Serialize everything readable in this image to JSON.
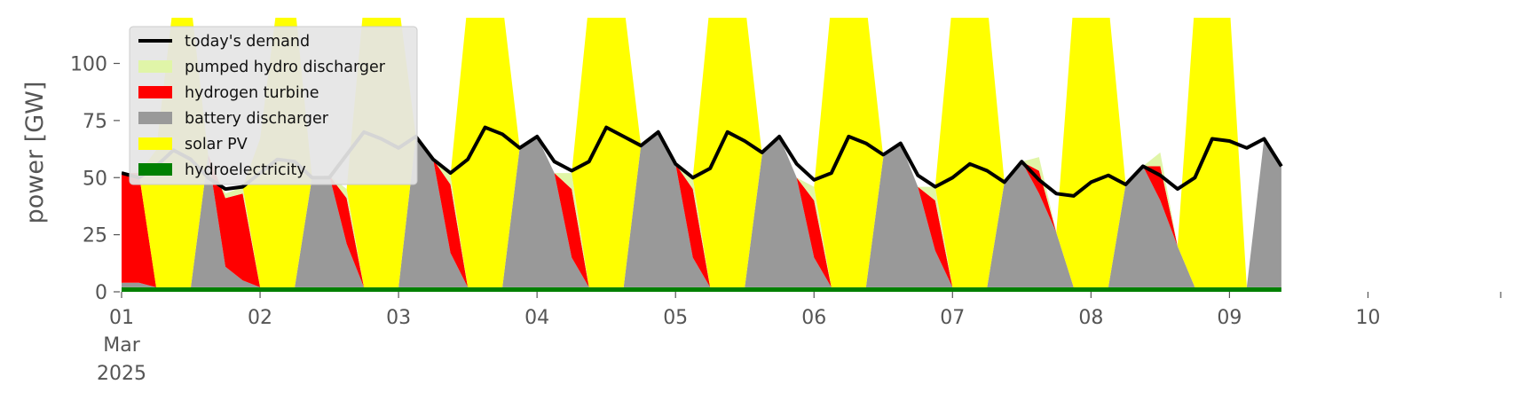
{
  "chart_data": {
    "type": "area",
    "title": "",
    "xlabel": "",
    "ylabel": "power [GW]",
    "ylim": [
      0,
      120
    ],
    "yticks": [
      "0",
      "25",
      "50",
      "75",
      "100"
    ],
    "xlim": [
      "2025-03-01",
      "2025-03-10T23:00"
    ],
    "xticks": [
      {
        "label": "01",
        "sub": [
          "Mar",
          "2025"
        ]
      },
      {
        "label": "02"
      },
      {
        "label": "03"
      },
      {
        "label": "04"
      },
      {
        "label": "05"
      },
      {
        "label": "06"
      },
      {
        "label": "07"
      },
      {
        "label": "08"
      },
      {
        "label": "09"
      },
      {
        "label": "10"
      }
    ],
    "grid": false,
    "legend_position": "top-left",
    "legend": [
      "today's demand",
      "pumped hydro discharger",
      "hydrogen turbine",
      "battery discharger",
      "solar PV",
      "hydroelectricity"
    ],
    "x_resolution": "3-hourly from 2025-03-01 00:00",
    "stack_order": [
      "hydroelectricity",
      "battery discharger",
      "hydrogen turbine",
      "pumped hydro discharger",
      "solar PV"
    ],
    "series": [
      {
        "name": "today's demand",
        "kind": "line",
        "color": "#000000",
        "values": [
          52,
          50,
          55,
          62,
          58,
          50,
          45,
          46,
          52,
          58,
          57,
          50,
          50,
          60,
          70,
          67,
          63,
          68,
          58,
          52,
          58,
          72,
          69,
          63,
          68,
          57,
          53,
          57,
          72,
          68,
          64,
          70,
          56,
          50,
          54,
          70,
          66,
          61,
          68,
          56,
          49,
          52,
          68,
          65,
          60,
          65,
          51,
          46,
          50,
          56,
          53,
          48,
          57,
          49,
          43,
          42,
          48,
          51,
          47,
          55,
          51,
          45,
          50,
          67,
          66,
          63,
          67,
          55
        ]
      },
      {
        "name": "pumped hydro discharger",
        "kind": "area",
        "color": "#e0f5a8",
        "values": [
          0,
          0,
          0,
          0,
          0,
          0,
          2,
          3,
          0,
          0,
          0,
          0,
          0,
          4,
          0,
          0,
          0,
          0,
          0,
          4,
          0,
          0,
          0,
          0,
          0,
          0,
          7,
          0,
          0,
          0,
          0,
          0,
          0,
          5,
          0,
          0,
          0,
          0,
          0,
          0,
          6,
          0,
          0,
          0,
          0,
          0,
          0,
          6,
          0,
          0,
          0,
          0,
          0,
          6,
          0,
          0,
          0,
          0,
          0,
          0,
          6,
          0,
          0,
          0,
          0,
          0,
          0,
          0
        ]
      },
      {
        "name": "hydrogen turbine",
        "kind": "area",
        "color": "#ff0000",
        "values": [
          48,
          48,
          0,
          0,
          0,
          0,
          30,
          38,
          0,
          0,
          0,
          0,
          0,
          20,
          0,
          0,
          0,
          0,
          0,
          30,
          0,
          0,
          0,
          0,
          0,
          0,
          30,
          0,
          0,
          0,
          0,
          0,
          0,
          30,
          0,
          0,
          0,
          0,
          0,
          0,
          25,
          0,
          0,
          0,
          0,
          0,
          0,
          22,
          0,
          0,
          0,
          0,
          0,
          10,
          0,
          0,
          0,
          0,
          0,
          0,
          15,
          0,
          0,
          0,
          0,
          0,
          0,
          0
        ]
      },
      {
        "name": "battery discharger",
        "kind": "area",
        "color": "#999999",
        "values": [
          2,
          2,
          0,
          0,
          0,
          58,
          9,
          3,
          0,
          0,
          0,
          48,
          49,
          19,
          0,
          0,
          0,
          66,
          56,
          15,
          0,
          0,
          0,
          61,
          66,
          50,
          13,
          0,
          0,
          0,
          62,
          68,
          54,
          13,
          0,
          0,
          0,
          58,
          66,
          48,
          13,
          0,
          0,
          0,
          57,
          63,
          44,
          16,
          0,
          0,
          0,
          46,
          55,
          41,
          24,
          0,
          0,
          0,
          45,
          53,
          38,
          18,
          0,
          0,
          0,
          0,
          65,
          53
        ]
      },
      {
        "name": "solar PV",
        "kind": "area",
        "color": "#ffff00",
        "values": [
          0,
          0,
          60,
          125,
          125,
          0,
          0,
          0,
          65,
          125,
          125,
          0,
          0,
          0,
          125,
          125,
          125,
          0,
          0,
          0,
          125,
          125,
          125,
          0,
          0,
          0,
          0,
          125,
          125,
          125,
          0,
          0,
          0,
          0,
          125,
          125,
          125,
          0,
          0,
          0,
          0,
          125,
          125,
          125,
          0,
          0,
          0,
          0,
          125,
          125,
          125,
          0,
          0,
          0,
          0,
          125,
          125,
          125,
          0,
          0,
          0,
          0,
          125,
          125,
          125,
          0,
          0,
          0
        ]
      },
      {
        "name": "hydroelectricity",
        "kind": "area",
        "color": "#008000",
        "values": [
          2,
          2,
          2,
          2,
          2,
          2,
          2,
          2,
          2,
          2,
          2,
          2,
          2,
          2,
          2,
          2,
          2,
          2,
          2,
          2,
          2,
          2,
          2,
          2,
          2,
          2,
          2,
          2,
          2,
          2,
          2,
          2,
          2,
          2,
          2,
          2,
          2,
          2,
          2,
          2,
          2,
          2,
          2,
          2,
          2,
          2,
          2,
          2,
          2,
          2,
          2,
          2,
          2,
          2,
          2,
          2,
          2,
          2,
          2,
          2,
          2,
          2,
          2,
          2,
          2,
          2,
          2,
          2
        ]
      }
    ]
  }
}
